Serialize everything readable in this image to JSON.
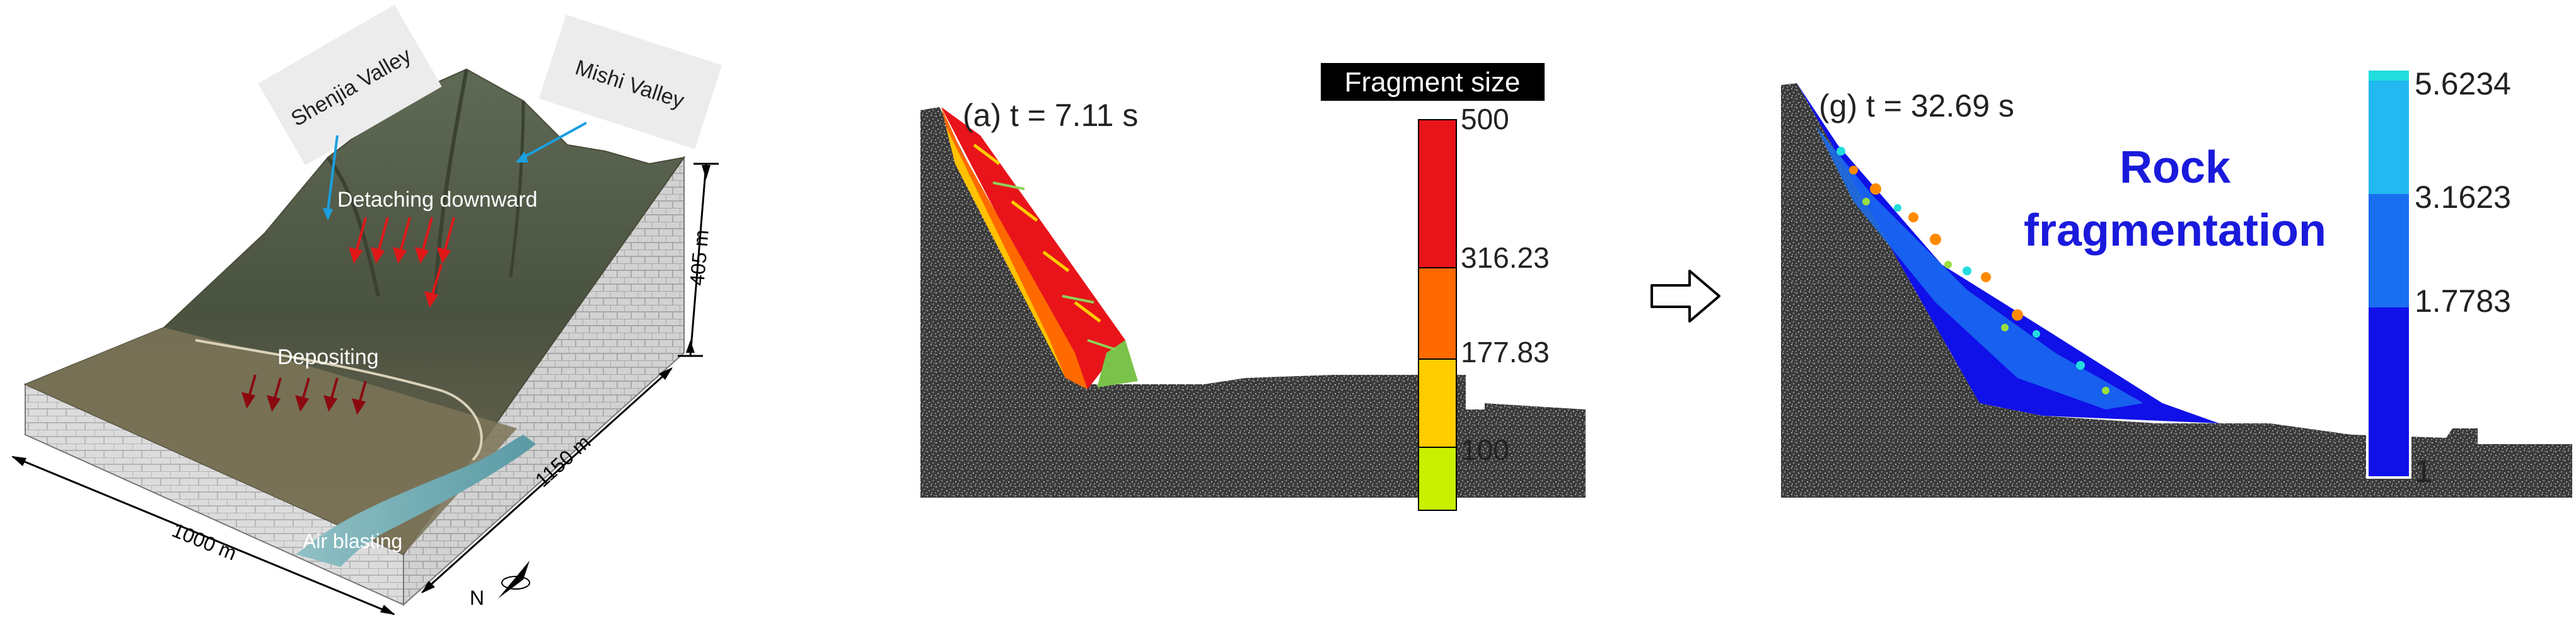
{
  "terrain": {
    "labels": {
      "shenjia_valley": "Shenjia Valley",
      "mishi_valley": "Mishi Valley",
      "detaching": "Detaching downward",
      "depositing": "Depositing",
      "air_blasting": "Air blasting",
      "height": "405 m",
      "length": "1000 m",
      "width": "1150 m",
      "north": "N"
    }
  },
  "panel_a": {
    "caption": "(a) t = 7.11 s",
    "legend_title": "Fragment size",
    "ticks": [
      "500",
      "316.23",
      "177.83",
      "100"
    ],
    "colors": [
      "#e8141a",
      "#ff6a00",
      "#ffcc00",
      "#c8f000"
    ]
  },
  "arrow": {
    "icon": "hollow-right-arrow-icon"
  },
  "panel_g": {
    "caption": "(g) t = 32.69 s",
    "annotation_line1": "Rock",
    "annotation_line2": "fragmentation",
    "ticks": [
      "5.6234",
      "3.1623",
      "1.7783",
      "1"
    ],
    "colors": [
      "#22dddd",
      "#22b8f0",
      "#1a6ef0",
      "#1010e8"
    ],
    "annotation_color": "#1a1adc"
  }
}
